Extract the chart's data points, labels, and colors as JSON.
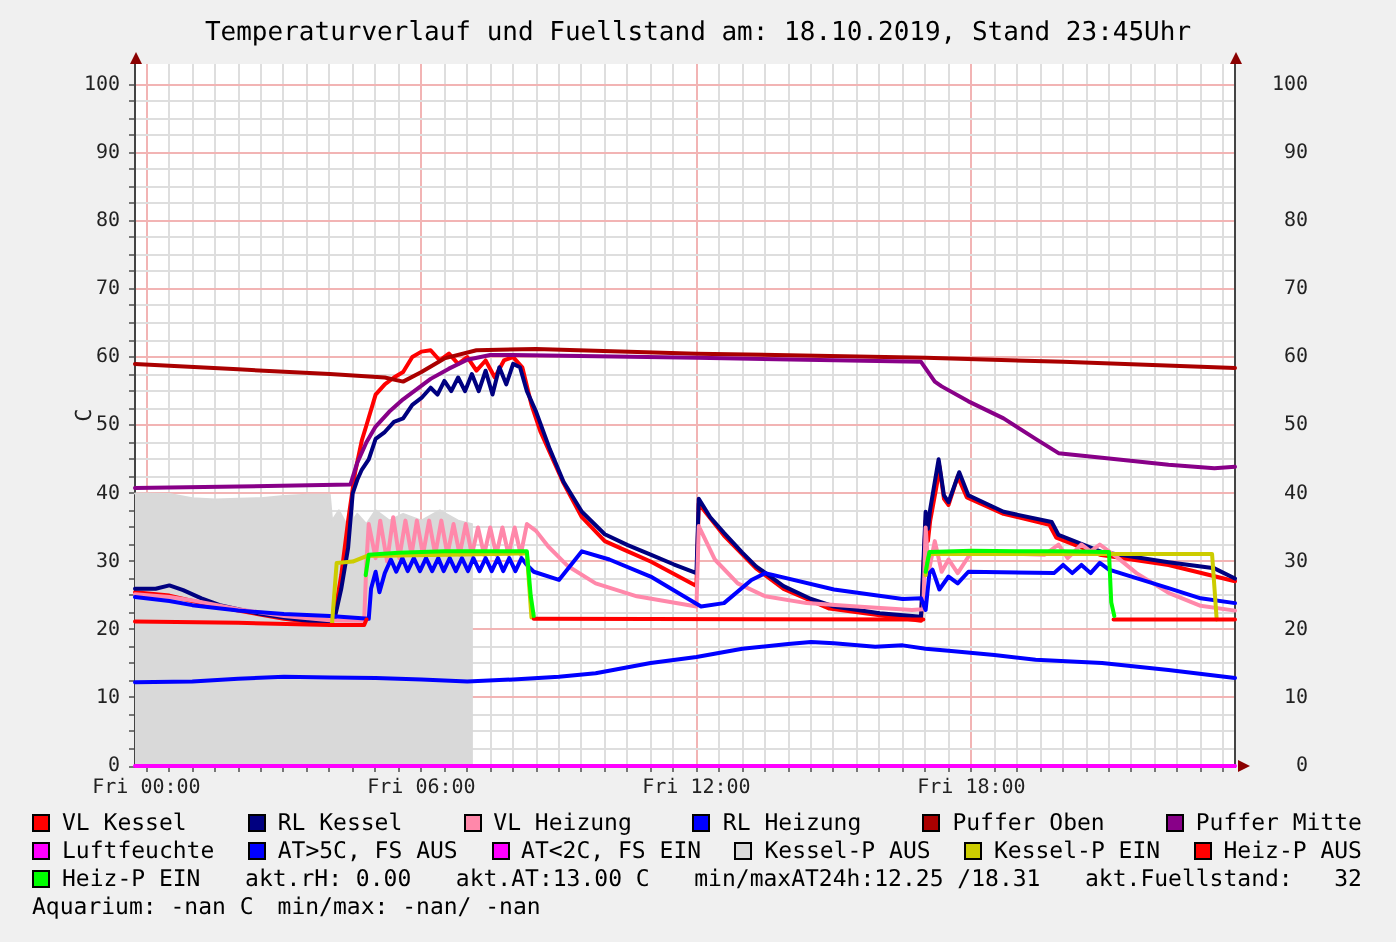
{
  "chart_data": {
    "type": "line",
    "title": "Temperaturverlauf und Fuellstand am: 18.10.2019, Stand 23:45Uhr",
    "ylabel": "C",
    "annotations": [
      "akt.rH: 0.00",
      "akt.AT:13.00 C",
      "min/maxAT24h:12.25 /18.31",
      "akt.Fuellstand:   32",
      "Aquarium: -nan C",
      "min/max: -nan/ -nan"
    ],
    "series": [
      {
        "name": "VL Kessel",
        "color": "#ff0000",
        "x": [
          "2019-10-17T23:45",
          "2019-10-18T00:30",
          "2019-10-18T01:00",
          "2019-10-18T01:30",
          "2019-10-18T02:00",
          "2019-10-18T03:00",
          "2019-10-18T04:00",
          "2019-10-18T04:06",
          "2019-10-18T04:15",
          "2019-10-18T04:24",
          "2019-10-18T04:33",
          "2019-10-18T04:42",
          "2019-10-18T04:48",
          "2019-10-18T05:00",
          "2019-10-18T05:12",
          "2019-10-18T05:24",
          "2019-10-18T05:36",
          "2019-10-18T05:48",
          "2019-10-18T06:00",
          "2019-10-18T06:12",
          "2019-10-18T06:24",
          "2019-10-18T06:36",
          "2019-10-18T06:48",
          "2019-10-18T07:00",
          "2019-10-18T07:12",
          "2019-10-18T07:24",
          "2019-10-18T07:36",
          "2019-10-18T07:48",
          "2019-10-18T08:00",
          "2019-10-18T08:12",
          "2019-10-18T08:24",
          "2019-10-18T08:36",
          "2019-10-18T08:48",
          "2019-10-18T09:06",
          "2019-10-18T09:30",
          "2019-10-18T10:00",
          "2019-10-18T10:30",
          "2019-10-18T11:00",
          "2019-10-18T12:00",
          "2019-10-18T12:03",
          "2019-10-18T12:36",
          "2019-10-18T13:18",
          "2019-10-18T13:54",
          "2019-10-18T14:54",
          "2019-10-18T16:00",
          "2019-10-18T16:54",
          "2019-10-18T17:00",
          "2019-10-18T17:03",
          "2019-10-18T17:06",
          "2019-10-18T17:15",
          "2019-10-18T17:18",
          "2019-10-18T17:24",
          "2019-10-18T17:30",
          "2019-10-18T17:42",
          "2019-10-18T17:54",
          "2019-10-18T18:42",
          "2019-10-18T19:42",
          "2019-10-18T19:51",
          "2019-10-18T20:48",
          "2019-10-18T22:18",
          "2019-10-18T23:45"
        ],
        "values": [
          25.5,
          25,
          24.2,
          23.5,
          22.8,
          21.6,
          20.8,
          22,
          28,
          36,
          43,
          47.8,
          50,
          54.5,
          56,
          57,
          57.8,
          60,
          60.8,
          61,
          59.5,
          60.5,
          59,
          60,
          58,
          59.5,
          57,
          59.5,
          60,
          58.5,
          53,
          49,
          46,
          41.5,
          36.5,
          33,
          31.5,
          30,
          26.4,
          38.5,
          33.8,
          29,
          26,
          23.1,
          22.1,
          21.3,
          36,
          33,
          36,
          41.5,
          44,
          39.2,
          38.3,
          42.5,
          39.4,
          37,
          35.4,
          33.5,
          31,
          29.5,
          27.1
        ]
      },
      {
        "name": "RL Kessel",
        "color": "#000080",
        "x": [
          "2019-10-17T23:45",
          "2019-10-18T00:12",
          "2019-10-18T00:30",
          "2019-10-18T00:48",
          "2019-10-18T01:12",
          "2019-10-18T01:36",
          "2019-10-18T02:00",
          "2019-10-18T02:30",
          "2019-10-18T03:00",
          "2019-10-18T03:30",
          "2019-10-18T04:00",
          "2019-10-18T04:06",
          "2019-10-18T04:15",
          "2019-10-18T04:24",
          "2019-10-18T04:30",
          "2019-10-18T04:36",
          "2019-10-18T04:42",
          "2019-10-18T04:51",
          "2019-10-18T05:00",
          "2019-10-18T05:12",
          "2019-10-18T05:24",
          "2019-10-18T05:36",
          "2019-10-18T05:48",
          "2019-10-18T06:00",
          "2019-10-18T06:12",
          "2019-10-18T06:21",
          "2019-10-18T06:30",
          "2019-10-18T06:39",
          "2019-10-18T06:48",
          "2019-10-18T06:57",
          "2019-10-18T07:06",
          "2019-10-18T07:15",
          "2019-10-18T07:24",
          "2019-10-18T07:33",
          "2019-10-18T07:42",
          "2019-10-18T07:51",
          "2019-10-18T08:00",
          "2019-10-18T08:09",
          "2019-10-18T08:18",
          "2019-10-18T08:30",
          "2019-10-18T08:48",
          "2019-10-18T09:06",
          "2019-10-18T09:30",
          "2019-10-18T10:00",
          "2019-10-18T10:30",
          "2019-10-18T11:00",
          "2019-10-18T11:30",
          "2019-10-18T12:00",
          "2019-10-18T12:03",
          "2019-10-18T12:18",
          "2019-10-18T12:36",
          "2019-10-18T13:00",
          "2019-10-18T13:18",
          "2019-10-18T13:54",
          "2019-10-18T14:30",
          "2019-10-18T15:00",
          "2019-10-18T16:00",
          "2019-10-18T16:54",
          "2019-10-18T17:00",
          "2019-10-18T17:03",
          "2019-10-18T17:06",
          "2019-10-18T17:17",
          "2019-10-18T17:24",
          "2019-10-18T17:30",
          "2019-10-18T17:44",
          "2019-10-18T17:56",
          "2019-10-18T18:42",
          "2019-10-18T19:45",
          "2019-10-18T19:54",
          "2019-10-18T20:51",
          "2019-10-18T22:18",
          "2019-10-18T23:18",
          "2019-10-18T23:45"
        ],
        "values": [
          26,
          26,
          26.5,
          25.8,
          24.6,
          23.6,
          23,
          22.3,
          21.8,
          21.3,
          20.9,
          21.5,
          26,
          32,
          40,
          42,
          43.5,
          45,
          48,
          49,
          50.5,
          51,
          53,
          54,
          55.5,
          54.5,
          56.5,
          55,
          57,
          55,
          57.5,
          55,
          58,
          54.5,
          58.5,
          56,
          59,
          58.5,
          55,
          52,
          46.5,
          41.7,
          37.3,
          34,
          32.4,
          31,
          29.6,
          28.3,
          39.2,
          36.5,
          34.2,
          31.3,
          29.3,
          26.4,
          24.5,
          23.4,
          22.4,
          21.9,
          37.3,
          34.8,
          37.7,
          45,
          39.7,
          38.7,
          43.1,
          39.7,
          37.3,
          35.8,
          33.9,
          31.4,
          29.9,
          29,
          27.5
        ]
      },
      {
        "name": "VL Heizung",
        "color": "#ff88aa",
        "x": [
          "2019-10-17T23:45",
          "2019-10-18T00:30",
          "2019-10-18T01:00",
          "2019-10-18T02:00",
          "2019-10-18T03:00",
          "2019-10-18T04:00",
          "2019-10-18T04:45",
          "2019-10-18T04:48",
          "2019-10-18T04:51",
          "2019-10-18T05:00",
          "2019-10-18T05:06",
          "2019-10-18T05:15",
          "2019-10-18T05:23",
          "2019-10-18T05:31",
          "2019-10-18T05:39",
          "2019-10-18T05:47",
          "2019-10-18T05:54",
          "2019-10-18T06:02",
          "2019-10-18T06:10",
          "2019-10-18T06:18",
          "2019-10-18T06:26",
          "2019-10-18T06:34",
          "2019-10-18T06:42",
          "2019-10-18T06:50",
          "2019-10-18T06:58",
          "2019-10-18T07:06",
          "2019-10-18T07:14",
          "2019-10-18T07:22",
          "2019-10-18T07:30",
          "2019-10-18T07:38",
          "2019-10-18T07:46",
          "2019-10-18T07:54",
          "2019-10-18T08:02",
          "2019-10-18T08:10",
          "2019-10-18T08:18",
          "2019-10-18T08:30",
          "2019-10-18T08:46",
          "2019-10-18T09:12",
          "2019-10-18T09:48",
          "2019-10-18T10:42",
          "2019-10-18T12:00",
          "2019-10-18T12:03",
          "2019-10-18T12:24",
          "2019-10-18T12:54",
          "2019-10-18T13:30",
          "2019-10-18T14:24",
          "2019-10-18T15:30",
          "2019-10-18T16:42",
          "2019-10-18T16:57",
          "2019-10-18T17:00",
          "2019-10-18T17:04",
          "2019-10-18T17:12",
          "2019-10-18T17:21",
          "2019-10-18T17:30",
          "2019-10-18T17:42",
          "2019-10-18T18:00",
          "2019-10-18T19:36",
          "2019-10-18T19:54",
          "2019-10-18T20:06",
          "2019-10-18T20:24",
          "2019-10-18T20:36",
          "2019-10-18T20:48",
          "2019-10-18T21:12",
          "2019-10-18T21:36",
          "2019-10-18T22:18",
          "2019-10-18T23:00",
          "2019-10-18T23:45"
        ],
        "values": [
          25.2,
          24.8,
          24.3,
          23,
          22,
          21.4,
          21.3,
          30,
          35.5,
          30.5,
          36,
          30,
          36.5,
          30.5,
          36,
          31,
          36,
          31,
          36,
          31,
          36,
          31,
          35.5,
          31,
          35.5,
          31,
          35,
          31,
          35,
          31,
          35,
          31,
          35,
          31,
          35.5,
          34.5,
          32.2,
          29.3,
          26.8,
          24.9,
          23.4,
          35.2,
          30.3,
          26.8,
          24.9,
          23.9,
          23.4,
          22.9,
          23,
          35,
          28.5,
          33,
          28.5,
          30.3,
          28.3,
          31.4,
          31,
          32.5,
          30.5,
          32.5,
          31.5,
          32.5,
          30.5,
          28.3,
          25.4,
          23.5,
          22.8
        ]
      },
      {
        "name": "RL Heizung",
        "color": "#0000ff",
        "x": [
          "2019-10-17T23:45",
          "2019-10-18T00:30",
          "2019-10-18T01:00",
          "2019-10-18T02:00",
          "2019-10-18T03:00",
          "2019-10-18T04:00",
          "2019-10-18T04:51",
          "2019-10-18T04:54",
          "2019-10-18T05:00",
          "2019-10-18T05:05",
          "2019-10-18T05:12",
          "2019-10-18T05:20",
          "2019-10-18T05:27",
          "2019-10-18T05:35",
          "2019-10-18T05:42",
          "2019-10-18T05:50",
          "2019-10-18T05:58",
          "2019-10-18T06:06",
          "2019-10-18T06:14",
          "2019-10-18T06:22",
          "2019-10-18T06:29",
          "2019-10-18T06:37",
          "2019-10-18T06:45",
          "2019-10-18T06:53",
          "2019-10-18T07:01",
          "2019-10-18T07:08",
          "2019-10-18T07:16",
          "2019-10-18T07:24",
          "2019-10-18T07:32",
          "2019-10-18T07:40",
          "2019-10-18T07:47",
          "2019-10-18T07:55",
          "2019-10-18T08:03",
          "2019-10-18T08:11",
          "2019-10-18T08:18",
          "2019-10-18T08:27",
          "2019-10-18T09:00",
          "2019-10-18T09:30",
          "2019-10-18T10:06",
          "2019-10-18T11:00",
          "2019-10-18T12:06",
          "2019-10-18T12:36",
          "2019-10-18T13:12",
          "2019-10-18T13:30",
          "2019-10-18T15:00",
          "2019-10-18T16:30",
          "2019-10-18T16:54",
          "2019-10-18T17:00",
          "2019-10-18T17:05",
          "2019-10-18T17:09",
          "2019-10-18T17:18",
          "2019-10-18T17:30",
          "2019-10-18T17:42",
          "2019-10-18T17:56",
          "2019-10-18T19:48",
          "2019-10-18T20:00",
          "2019-10-18T20:12",
          "2019-10-18T20:24",
          "2019-10-18T20:36",
          "2019-10-18T20:48",
          "2019-10-18T21:00",
          "2019-10-18T22:18",
          "2019-10-18T23:00",
          "2019-10-18T23:45"
        ],
        "values": [
          24.8,
          24.2,
          23.6,
          22.8,
          22.3,
          22,
          21.6,
          26,
          28.5,
          25.5,
          28.3,
          30.3,
          28.5,
          30.5,
          28.6,
          30.5,
          28.6,
          30.5,
          28.6,
          30.5,
          28.6,
          30.5,
          28.6,
          30.5,
          28.6,
          30.5,
          28.6,
          30.5,
          28.6,
          30.5,
          28.6,
          30.5,
          28.6,
          30.5,
          29.5,
          28.5,
          27.3,
          31.5,
          30.3,
          27.8,
          23.4,
          23.9,
          27.3,
          28.3,
          25.9,
          24.5,
          24.6,
          22.9,
          28.3,
          28.8,
          25.9,
          27.8,
          26.8,
          28.5,
          28.3,
          29.5,
          28.3,
          29.5,
          28.3,
          29.8,
          28.8,
          26.1,
          24.6,
          23.9
        ]
      },
      {
        "name": "Puffer Oben",
        "color": "#aa0000",
        "x": [
          "2019-10-17T23:45",
          "2019-10-18T02:00",
          "2019-10-18T04:00",
          "2019-10-18T05:12",
          "2019-10-18T05:36",
          "2019-10-18T06:00",
          "2019-10-18T06:30",
          "2019-10-18T07:12",
          "2019-10-18T08:30",
          "2019-10-18T12:00",
          "2019-10-18T17:00",
          "2019-10-18T20:00",
          "2019-10-18T23:45"
        ],
        "values": [
          59,
          58.2,
          57.5,
          57,
          56.4,
          57.8,
          59.8,
          61,
          61.2,
          60.5,
          59.9,
          59.3,
          58.4
        ]
      },
      {
        "name": "Puffer Mitte",
        "color": "#880088",
        "x": [
          "2019-10-17T23:45",
          "2019-10-18T02:00",
          "2019-10-18T04:27",
          "2019-10-18T04:36",
          "2019-10-18T04:48",
          "2019-10-18T05:00",
          "2019-10-18T05:18",
          "2019-10-18T05:36",
          "2019-10-18T06:12",
          "2019-10-18T06:36",
          "2019-10-18T07:00",
          "2019-10-18T07:30",
          "2019-10-18T08:00",
          "2019-10-18T12:00",
          "2019-10-18T16:54",
          "2019-10-18T17:12",
          "2019-10-18T17:21",
          "2019-10-18T17:56",
          "2019-10-18T18:42",
          "2019-10-18T19:24",
          "2019-10-18T19:54",
          "2019-10-18T20:54",
          "2019-10-18T22:18",
          "2019-10-18T23:18",
          "2019-10-18T23:45"
        ],
        "values": [
          40.8,
          41,
          41.3,
          44.5,
          47.5,
          49.8,
          52,
          53.8,
          56.8,
          58.3,
          59.6,
          60.3,
          60.3,
          59.9,
          59.3,
          56.4,
          55.7,
          53.5,
          51,
          48,
          45.9,
          45.2,
          44.2,
          43.7,
          43.9
        ]
      },
      {
        "name": "Luftfeuchte",
        "color": "#ff00ff",
        "x": [
          "2019-10-17T23:45",
          "2019-10-18T23:45"
        ],
        "values": [
          0,
          0
        ]
      },
      {
        "name": "AT>5C, FS AUS",
        "color": "#0000ff",
        "x": [
          "2019-10-17T23:45",
          "2019-10-18T01:00",
          "2019-10-18T02:00",
          "2019-10-18T03:00",
          "2019-10-18T04:00",
          "2019-10-18T05:00",
          "2019-10-18T06:00",
          "2019-10-18T07:00",
          "2019-10-18T08:00",
          "2019-10-18T09:00",
          "2019-10-18T09:48",
          "2019-10-18T11:00",
          "2019-10-18T12:00",
          "2019-10-18T13:00",
          "2019-10-18T14:00",
          "2019-10-18T14:30",
          "2019-10-18T15:00",
          "2019-10-18T15:54",
          "2019-10-18T16:30",
          "2019-10-18T17:00",
          "2019-10-18T17:30",
          "2019-10-18T18:30",
          "2019-10-18T19:24",
          "2019-10-18T20:51",
          "2019-10-18T22:18",
          "2019-10-18T23:45"
        ],
        "values": [
          12.3,
          12.4,
          12.8,
          13.1,
          13,
          12.9,
          12.7,
          12.4,
          12.7,
          13.1,
          13.6,
          15.1,
          16,
          17.2,
          17.9,
          18.2,
          18,
          17.5,
          17.7,
          17.2,
          16.9,
          16.3,
          15.6,
          15.1,
          14.1,
          12.9
        ]
      },
      {
        "name": "AT<2C, FS EIN",
        "color": "#ff00ff"
      },
      {
        "name": "Kessel-P AUS",
        "type": "area",
        "color": "#d9d9d9",
        "x": [
          "2019-10-17T23:45",
          "2019-10-18T00:30",
          "2019-10-18T01:00",
          "2019-10-18T01:30",
          "2019-10-18T02:00",
          "2019-10-18T02:30",
          "2019-10-18T03:00",
          "2019-10-18T03:30",
          "2019-10-18T04:00",
          "2019-10-18T04:03",
          "2019-10-18T04:12",
          "2019-10-18T04:24",
          "2019-10-18T04:36",
          "2019-10-18T04:48",
          "2019-10-18T05:00",
          "2019-10-18T05:18",
          "2019-10-18T05:36",
          "2019-10-18T06:00",
          "2019-10-18T06:24",
          "2019-10-18T06:48",
          "2019-10-18T07:05",
          "2019-10-18T07:06"
        ],
        "values": [
          40,
          39.9,
          39.3,
          39.1,
          39.2,
          39.3,
          39.6,
          39.8,
          39.8,
          36,
          37.5,
          35,
          37,
          35.5,
          37.5,
          36,
          37,
          36,
          37.5,
          36,
          35.5,
          0
        ]
      },
      {
        "name": "Kessel-P EIN",
        "color": "#cccc00",
        "x": [
          "2019-10-18T04:03",
          "2019-10-18T04:09",
          "2019-10-18T04:30",
          "2019-10-18T04:48",
          "2019-10-18T08:18",
          "2019-10-18T08:24",
          "2019-10-18T12:00",
          "2019-10-18T17:00",
          "2019-10-18T17:03",
          "2019-10-18T17:06",
          "2019-10-18T23:15",
          "2019-10-18T23:21"
        ],
        "values": [
          21,
          29.8,
          30,
          30.8,
          31.2,
          21.8,
          null,
          28,
          30.5,
          31.1,
          31.1,
          21.5
        ]
      },
      {
        "name": "Heiz-P AUS",
        "color": "#ff0000",
        "x": [
          "2019-10-17T23:45",
          "2019-10-18T02:00",
          "2019-10-18T04:00",
          "2019-10-18T04:45",
          "2019-10-18T04:48",
          "2019-10-18T06:00",
          "2019-10-18T08:27",
          "2019-10-18T16:57",
          "2019-10-18T19:00",
          "2019-10-18T21:06",
          "2019-10-18T23:45"
        ],
        "values": [
          21.2,
          21,
          20.7,
          20.7,
          21.5,
          null,
          21.6,
          21.5,
          null,
          21.5,
          21.5
        ]
      },
      {
        "name": "Heiz-P EIN",
        "color": "#00ff00",
        "x": [
          "2019-10-18T04:47",
          "2019-10-18T04:51",
          "2019-10-18T05:30",
          "2019-10-18T06:30",
          "2019-10-18T07:30",
          "2019-10-18T08:18",
          "2019-10-18T08:23",
          "2019-10-18T08:27",
          "2019-10-18T12:00",
          "2019-10-18T17:00",
          "2019-10-18T17:05",
          "2019-10-18T18:00",
          "2019-10-18T19:00",
          "2019-10-18T20:00",
          "2019-10-18T21:00",
          "2019-10-18T21:03",
          "2019-10-18T21:07"
        ],
        "values": [
          28,
          31,
          31.3,
          31.5,
          31.5,
          31.5,
          25,
          22,
          null,
          28.5,
          31.4,
          31.6,
          31.5,
          31.5,
          31.4,
          24,
          22
        ]
      }
    ],
    "xlim": [
      "2019-10-17T23:45",
      "2019-10-18T23:45"
    ],
    "xticks": [
      {
        "value": "2019-10-18T00:00",
        "label": "Fri 00:00"
      },
      {
        "value": "2019-10-18T00:30",
        "label": null
      },
      {
        "value": "2019-10-18T01:00",
        "label": null
      },
      {
        "value": "2019-10-18T01:30",
        "label": null
      },
      {
        "value": "2019-10-18T02:00",
        "label": null
      },
      {
        "value": "2019-10-18T02:30",
        "label": null
      },
      {
        "value": "2019-10-18T03:00",
        "label": null
      },
      {
        "value": "2019-10-18T03:30",
        "label": null
      },
      {
        "value": "2019-10-18T04:00",
        "label": null
      },
      {
        "value": "2019-10-18T04:30",
        "label": null
      },
      {
        "value": "2019-10-18T05:00",
        "label": null
      },
      {
        "value": "2019-10-18T05:30",
        "label": null
      },
      {
        "value": "2019-10-18T06:00",
        "label": "Fri 06:00"
      },
      {
        "value": "2019-10-18T06:30",
        "label": null
      },
      {
        "value": "2019-10-18T07:00",
        "label": null
      },
      {
        "value": "2019-10-18T07:30",
        "label": null
      },
      {
        "value": "2019-10-18T08:00",
        "label": null
      },
      {
        "value": "2019-10-18T08:30",
        "label": null
      },
      {
        "value": "2019-10-18T09:00",
        "label": null
      },
      {
        "value": "2019-10-18T09:30",
        "label": null
      },
      {
        "value": "2019-10-18T10:00",
        "label": null
      },
      {
        "value": "2019-10-18T10:30",
        "label": null
      },
      {
        "value": "2019-10-18T11:00",
        "label": null
      },
      {
        "value": "2019-10-18T11:30",
        "label": null
      },
      {
        "value": "2019-10-18T12:00",
        "label": "Fri 12:00"
      },
      {
        "value": "2019-10-18T12:30",
        "label": null
      },
      {
        "value": "2019-10-18T13:00",
        "label": null
      },
      {
        "value": "2019-10-18T13:30",
        "label": null
      },
      {
        "value": "2019-10-18T14:00",
        "label": null
      },
      {
        "value": "2019-10-18T14:30",
        "label": null
      },
      {
        "value": "2019-10-18T15:00",
        "label": null
      },
      {
        "value": "2019-10-18T15:30",
        "label": null
      },
      {
        "value": "2019-10-18T16:00",
        "label": null
      },
      {
        "value": "2019-10-18T16:30",
        "label": null
      },
      {
        "value": "2019-10-18T17:00",
        "label": null
      },
      {
        "value": "2019-10-18T17:30",
        "label": null
      },
      {
        "value": "2019-10-18T18:00",
        "label": "Fri 18:00"
      },
      {
        "value": "2019-10-18T18:30",
        "label": null
      },
      {
        "value": "2019-10-18T19:00",
        "label": null
      },
      {
        "value": "2019-10-18T19:30",
        "label": null
      },
      {
        "value": "2019-10-18T20:00",
        "label": null
      },
      {
        "value": "2019-10-18T20:30",
        "label": null
      },
      {
        "value": "2019-10-18T21:00",
        "label": null
      },
      {
        "value": "2019-10-18T21:30",
        "label": null
      },
      {
        "value": "2019-10-18T22:00",
        "label": null
      },
      {
        "value": "2019-10-18T22:30",
        "label": null
      },
      {
        "value": "2019-10-18T23:00",
        "label": null
      },
      {
        "value": "2019-10-18T23:30",
        "label": null
      }
    ],
    "ylim": [
      0,
      103
    ],
    "yticks": [
      0,
      {
        "value": 2.5,
        "label": null
      },
      {
        "value": 5,
        "label": null
      },
      {
        "value": 7.5,
        "label": null
      },
      10,
      {
        "value": 12.5,
        "label": null
      },
      {
        "value": 15,
        "label": null
      },
      {
        "value": 17.5,
        "label": null
      },
      20,
      {
        "value": 22.5,
        "label": null
      },
      {
        "value": 25,
        "label": null
      },
      {
        "value": 27.5,
        "label": null
      },
      30,
      {
        "value": 32.5,
        "label": null
      },
      {
        "value": 35,
        "label": null
      },
      {
        "value": 37.5,
        "label": null
      },
      40,
      {
        "value": 42.5,
        "label": null
      },
      {
        "value": 45,
        "label": null
      },
      {
        "value": 47.5,
        "label": null
      },
      50,
      {
        "value": 52.5,
        "label": null
      },
      {
        "value": 55,
        "label": null
      },
      {
        "value": 57.5,
        "label": null
      },
      60,
      {
        "value": 62.5,
        "label": null
      },
      {
        "value": 65,
        "label": null
      },
      {
        "value": 67.5,
        "label": null
      },
      70,
      {
        "value": 72.5,
        "label": null
      },
      {
        "value": 75,
        "label": null
      },
      {
        "value": 77.5,
        "label": null
      },
      80,
      {
        "value": 82.5,
        "label": null
      },
      {
        "value": 85,
        "label": null
      },
      {
        "value": 87.5,
        "label": null
      },
      90,
      {
        "value": 92.5,
        "label": null
      },
      {
        "value": 95,
        "label": null
      },
      {
        "value": 97.5,
        "label": null
      },
      100
    ],
    "y2lim": [
      0,
      103
    ],
    "y2ticks": [
      0,
      10,
      20,
      30,
      40,
      50,
      60,
      70,
      80,
      90,
      100
    ],
    "grid": true,
    "legend": "bottom",
    "marker": "none",
    "line_style": "solid"
  }
}
